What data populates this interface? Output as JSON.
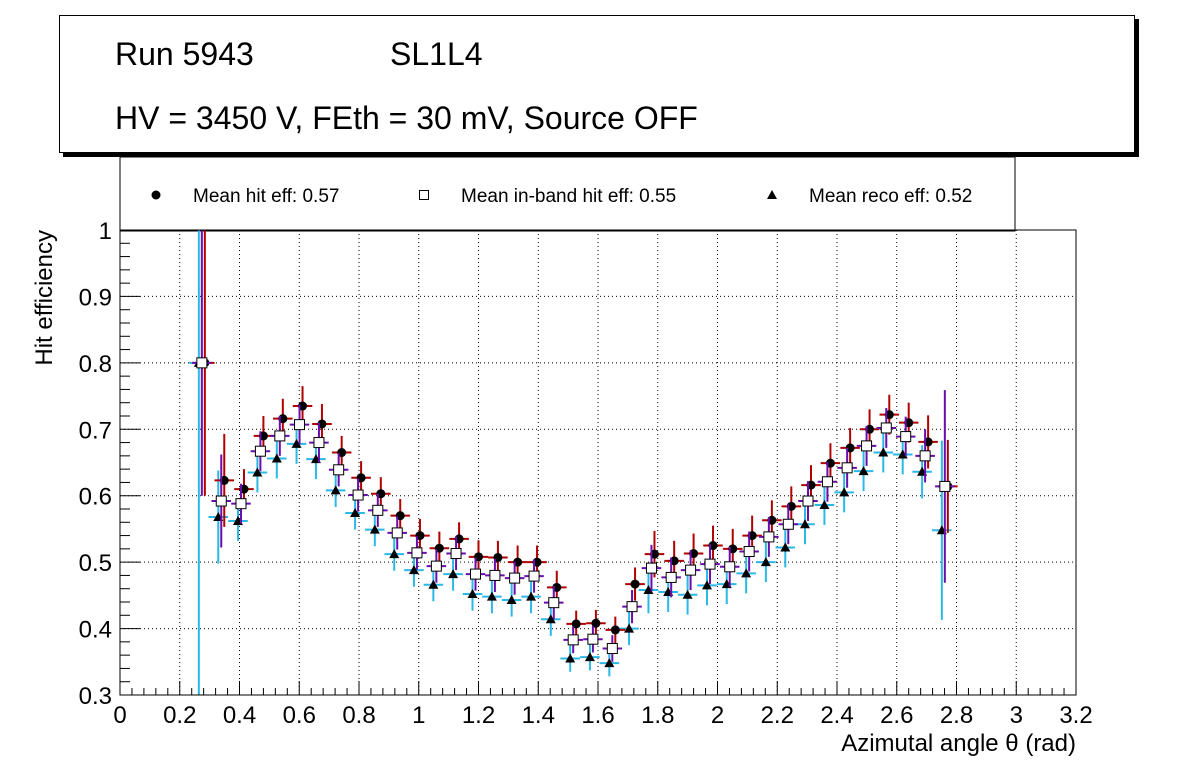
{
  "title_box": {
    "run": "Run 5943",
    "chamber": "SL1L4",
    "conditions": "HV = 3450 V, FEth = 30 mV, Source OFF"
  },
  "colors": {
    "hit": "#000000",
    "hit_err": "#b00000",
    "inband": "#ffffff",
    "inband_err": "#6a0dad",
    "reco": "#000000",
    "reco_err": "#2ab8e6",
    "grid": "#000000"
  },
  "chart_data": {
    "type": "scatter",
    "title": "",
    "xlabel": "Azimutal angle θ (rad)",
    "ylabel": "Hit efficiency",
    "xlim": [
      0,
      3.2
    ],
    "ylim": [
      0.3,
      1.0
    ],
    "xticks": [
      "0",
      "0.2",
      "0.4",
      "0.6",
      "0.8",
      "1",
      "1.2",
      "1.4",
      "1.6",
      "1.8",
      "2",
      "2.2",
      "2.4",
      "2.6",
      "2.8",
      "3",
      "3.2"
    ],
    "yticks": [
      "0.3",
      "0.4",
      "0.5",
      "0.6",
      "0.7",
      "0.8",
      "0.9",
      "1"
    ],
    "grid": true,
    "legend": {
      "position": "top",
      "entries": [
        "Mean hit  eff: 0.57",
        "Mean in-band hit eff: 0.55",
        "Mean reco eff: 0.52"
      ]
    },
    "x_bin_half_width": 0.0327,
    "series": [
      {
        "name": "Mean hit  eff: 0.57",
        "marker": "circle",
        "x": [
          0.284,
          0.349,
          0.415,
          0.48,
          0.545,
          0.611,
          0.676,
          0.742,
          0.807,
          0.873,
          0.938,
          1.004,
          1.069,
          1.135,
          1.2,
          1.265,
          1.331,
          1.396,
          1.462,
          1.527,
          1.593,
          1.658,
          1.724,
          1.789,
          1.855,
          1.92,
          1.985,
          2.051,
          2.116,
          2.182,
          2.247,
          2.313,
          2.378,
          2.444,
          2.509,
          2.575,
          2.64,
          2.705,
          2.771
        ],
        "y": [
          0.8,
          0.623,
          0.61,
          0.69,
          0.716,
          0.735,
          0.708,
          0.665,
          0.627,
          0.603,
          0.57,
          0.54,
          0.521,
          0.535,
          0.508,
          0.507,
          0.5,
          0.5,
          0.462,
          0.407,
          0.408,
          0.398,
          0.467,
          0.512,
          0.502,
          0.513,
          0.525,
          0.52,
          0.54,
          0.563,
          0.584,
          0.616,
          0.649,
          0.672,
          0.7,
          0.722,
          0.71,
          0.681,
          0.614
        ],
        "err": [
          0.2,
          0.07,
          0.03,
          0.03,
          0.03,
          0.03,
          0.03,
          0.025,
          0.025,
          0.025,
          0.025,
          0.025,
          0.025,
          0.025,
          0.025,
          0.025,
          0.025,
          0.025,
          0.025,
          0.02,
          0.02,
          0.02,
          0.025,
          0.035,
          0.03,
          0.03,
          0.03,
          0.03,
          0.03,
          0.03,
          0.03,
          0.03,
          0.03,
          0.03,
          0.03,
          0.03,
          0.03,
          0.04,
          0.07
        ]
      },
      {
        "name": "Mean in-band hit eff: 0.55",
        "marker": "open-square",
        "x": [
          0.284,
          0.349,
          0.415,
          0.48,
          0.545,
          0.611,
          0.676,
          0.742,
          0.807,
          0.873,
          0.938,
          1.004,
          1.069,
          1.135,
          1.2,
          1.265,
          1.331,
          1.396,
          1.462,
          1.527,
          1.593,
          1.658,
          1.724,
          1.789,
          1.855,
          1.92,
          1.985,
          2.051,
          2.116,
          2.182,
          2.247,
          2.313,
          2.378,
          2.444,
          2.509,
          2.575,
          2.64,
          2.705,
          2.771
        ],
        "y": [
          0.8,
          0.592,
          0.588,
          0.667,
          0.69,
          0.707,
          0.68,
          0.639,
          0.601,
          0.578,
          0.544,
          0.514,
          0.494,
          0.513,
          0.482,
          0.48,
          0.476,
          0.479,
          0.439,
          0.383,
          0.384,
          0.37,
          0.433,
          0.491,
          0.477,
          0.488,
          0.497,
          0.493,
          0.516,
          0.538,
          0.557,
          0.592,
          0.621,
          0.642,
          0.675,
          0.702,
          0.689,
          0.66,
          0.614
        ],
        "err": [
          0.2,
          0.07,
          0.03,
          0.03,
          0.03,
          0.03,
          0.03,
          0.025,
          0.025,
          0.025,
          0.025,
          0.025,
          0.025,
          0.025,
          0.025,
          0.025,
          0.025,
          0.025,
          0.025,
          0.02,
          0.02,
          0.02,
          0.025,
          0.035,
          0.03,
          0.03,
          0.03,
          0.03,
          0.03,
          0.03,
          0.03,
          0.03,
          0.03,
          0.03,
          0.03,
          0.03,
          0.03,
          0.04,
          0.145
        ]
      },
      {
        "name": "Mean reco eff: 0.52",
        "marker": "triangle",
        "x": [
          0.284,
          0.349,
          0.415,
          0.48,
          0.545,
          0.611,
          0.676,
          0.742,
          0.807,
          0.873,
          0.938,
          1.004,
          1.069,
          1.135,
          1.2,
          1.265,
          1.331,
          1.396,
          1.462,
          1.527,
          1.593,
          1.658,
          1.724,
          1.789,
          1.855,
          1.92,
          1.985,
          2.051,
          2.116,
          2.182,
          2.247,
          2.313,
          2.378,
          2.444,
          2.509,
          2.575,
          2.64,
          2.705,
          2.771
        ],
        "y": [
          0.8,
          0.568,
          0.562,
          0.635,
          0.656,
          0.678,
          0.655,
          0.608,
          0.574,
          0.549,
          0.512,
          0.488,
          0.466,
          0.482,
          0.452,
          0.448,
          0.443,
          0.448,
          0.414,
          0.355,
          0.357,
          0.348,
          0.4,
          0.458,
          0.455,
          0.451,
          0.465,
          0.467,
          0.483,
          0.5,
          0.522,
          0.557,
          0.586,
          0.605,
          0.637,
          0.665,
          0.662,
          0.636,
          0.548
        ],
        "err": [
          0.5,
          0.07,
          0.03,
          0.03,
          0.03,
          0.03,
          0.03,
          0.025,
          0.025,
          0.025,
          0.025,
          0.025,
          0.025,
          0.025,
          0.025,
          0.025,
          0.025,
          0.025,
          0.025,
          0.02,
          0.02,
          0.02,
          0.025,
          0.035,
          0.03,
          0.03,
          0.03,
          0.03,
          0.03,
          0.03,
          0.03,
          0.03,
          0.03,
          0.03,
          0.03,
          0.03,
          0.03,
          0.04,
          0.135
        ]
      }
    ]
  }
}
